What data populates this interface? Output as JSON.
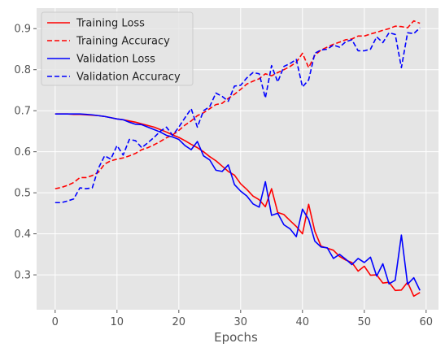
{
  "chart_data": {
    "type": "line",
    "title": "",
    "xlabel": "Epochs",
    "ylabel": "",
    "xlim": [
      -3,
      62
    ],
    "ylim": [
      0.215,
      0.95
    ],
    "xticks": [
      0,
      10,
      20,
      30,
      40,
      50,
      60
    ],
    "yticks": [
      0.3,
      0.4,
      0.5,
      0.6,
      0.7,
      0.8,
      0.9
    ],
    "grid": true,
    "legend_position": "top-left",
    "background": "#e5e5e5",
    "x": [
      0,
      1,
      2,
      3,
      4,
      5,
      6,
      7,
      8,
      9,
      10,
      11,
      12,
      13,
      14,
      15,
      16,
      17,
      18,
      19,
      20,
      21,
      22,
      23,
      24,
      25,
      26,
      27,
      28,
      29,
      30,
      31,
      32,
      33,
      34,
      35,
      36,
      37,
      38,
      39,
      40,
      41,
      42,
      43,
      44,
      45,
      46,
      47,
      48,
      49,
      50,
      51,
      52,
      53,
      54,
      55,
      56,
      57,
      58,
      59
    ],
    "series": [
      {
        "name": "Training Loss",
        "color": "#ff0000",
        "dash": "solid",
        "values": [
          0.692,
          0.692,
          0.692,
          0.691,
          0.691,
          0.69,
          0.689,
          0.688,
          0.686,
          0.683,
          0.68,
          0.678,
          0.675,
          0.672,
          0.668,
          0.664,
          0.66,
          0.654,
          0.648,
          0.641,
          0.635,
          0.627,
          0.618,
          0.61,
          0.6,
          0.588,
          0.578,
          0.565,
          0.552,
          0.543,
          0.522,
          0.508,
          0.492,
          0.483,
          0.466,
          0.51,
          0.452,
          0.447,
          0.432,
          0.418,
          0.4,
          0.472,
          0.406,
          0.37,
          0.365,
          0.36,
          0.345,
          0.336,
          0.33,
          0.309,
          0.321,
          0.299,
          0.3,
          0.28,
          0.282,
          0.262,
          0.263,
          0.282,
          0.248,
          0.257
        ]
      },
      {
        "name": "Training Accuracy",
        "color": "#ff0000",
        "dash": "dashed",
        "values": [
          0.51,
          0.513,
          0.518,
          0.525,
          0.537,
          0.537,
          0.542,
          0.55,
          0.57,
          0.578,
          0.582,
          0.585,
          0.59,
          0.596,
          0.605,
          0.61,
          0.617,
          0.625,
          0.634,
          0.641,
          0.652,
          0.665,
          0.675,
          0.688,
          0.695,
          0.705,
          0.715,
          0.718,
          0.73,
          0.74,
          0.752,
          0.765,
          0.772,
          0.778,
          0.79,
          0.785,
          0.793,
          0.8,
          0.808,
          0.818,
          0.84,
          0.805,
          0.835,
          0.848,
          0.855,
          0.862,
          0.867,
          0.873,
          0.875,
          0.882,
          0.882,
          0.887,
          0.891,
          0.896,
          0.9,
          0.906,
          0.905,
          0.902,
          0.919,
          0.913
        ]
      },
      {
        "name": "Validation Loss",
        "color": "#0000ff",
        "dash": "solid",
        "values": [
          0.692,
          0.692,
          0.692,
          0.692,
          0.692,
          0.691,
          0.69,
          0.688,
          0.686,
          0.683,
          0.68,
          0.678,
          0.672,
          0.667,
          0.666,
          0.66,
          0.654,
          0.648,
          0.64,
          0.636,
          0.63,
          0.615,
          0.605,
          0.625,
          0.59,
          0.58,
          0.555,
          0.552,
          0.568,
          0.52,
          0.504,
          0.492,
          0.473,
          0.465,
          0.527,
          0.445,
          0.45,
          0.422,
          0.412,
          0.393,
          0.46,
          0.435,
          0.382,
          0.368,
          0.366,
          0.34,
          0.35,
          0.338,
          0.325,
          0.34,
          0.33,
          0.343,
          0.297,
          0.327,
          0.278,
          0.287,
          0.397,
          0.277,
          0.293,
          0.262
        ]
      },
      {
        "name": "Validation Accuracy",
        "color": "#0000ff",
        "dash": "dashed",
        "values": [
          0.476,
          0.476,
          0.48,
          0.485,
          0.512,
          0.51,
          0.512,
          0.56,
          0.59,
          0.582,
          0.615,
          0.592,
          0.63,
          0.627,
          0.61,
          0.622,
          0.635,
          0.65,
          0.66,
          0.64,
          0.66,
          0.683,
          0.705,
          0.66,
          0.7,
          0.71,
          0.743,
          0.735,
          0.723,
          0.76,
          0.762,
          0.78,
          0.793,
          0.79,
          0.731,
          0.81,
          0.77,
          0.808,
          0.815,
          0.825,
          0.758,
          0.775,
          0.84,
          0.848,
          0.85,
          0.86,
          0.855,
          0.868,
          0.873,
          0.846,
          0.846,
          0.85,
          0.88,
          0.866,
          0.89,
          0.886,
          0.805,
          0.89,
          0.888,
          0.902
        ]
      }
    ]
  }
}
